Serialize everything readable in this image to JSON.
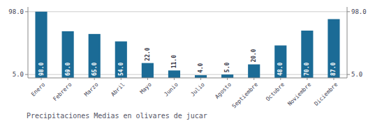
{
  "chart_data": {
    "type": "bar",
    "title": "Precipitaciones Medias en olivares de jucar",
    "categories": [
      "Enero",
      "Febrero",
      "Marzo",
      "Abril",
      "Mayo",
      "Junio",
      "Julio",
      "Agosto",
      "Septiembre",
      "Octubre",
      "Noviembre",
      "Diciembre"
    ],
    "values": [
      98.0,
      69.0,
      65.0,
      54.0,
      22.0,
      11.0,
      4.0,
      5.0,
      20.0,
      48.0,
      70.0,
      87.0
    ],
    "value_labels": [
      "98.0",
      "69.0",
      "65.0",
      "54.0",
      "22.0",
      "11.0",
      "4.0",
      "5.0",
      "20.0",
      "48.0",
      "70.0",
      "87.0"
    ],
    "data_labels": true,
    "color": "#1b6b96",
    "ylim": [
      0,
      105
    ],
    "yticks": [
      {
        "value": 5.0,
        "label": "5.0"
      },
      {
        "value": 98.0,
        "label": "98.0"
      }
    ],
    "y2lim": [
      0,
      105
    ],
    "y2ticks": [
      {
        "value": 5.0,
        "label": "5.0"
      },
      {
        "value": 98.0,
        "label": "98.0"
      }
    ],
    "grid": true
  }
}
